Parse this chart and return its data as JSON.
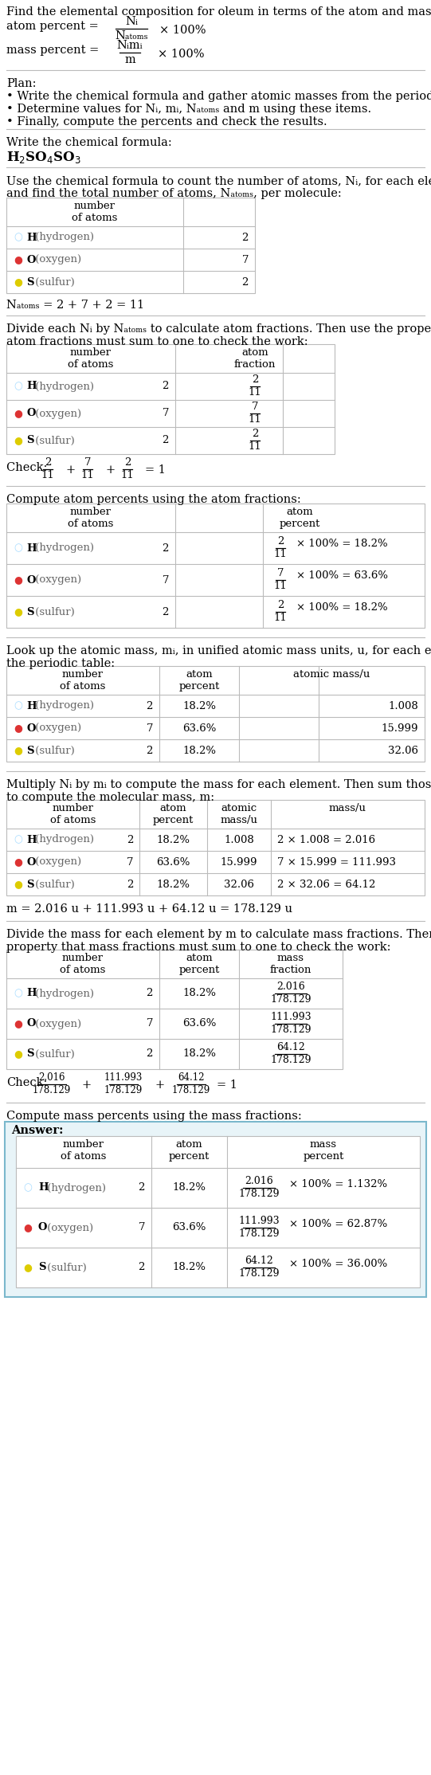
{
  "figsize": [
    5.41,
    22.28
  ],
  "dpi": 100,
  "bg_color": "#ffffff",
  "answer_bg": "#e8f4f8",
  "answer_border": "#7ab8cc",
  "table_border": "#bbbbbb",
  "text_color": "#000000",
  "gray_text": "#666666",
  "h_dot_color": "#aaddff",
  "o_dot_color": "#dd3333",
  "s_dot_color": "#ddcc00",
  "elements": [
    {
      "symbol": "○",
      "dot_color": "#aaddff",
      "letter": "H",
      "name": " (hydrogen)",
      "n": "2"
    },
    {
      "symbol": "●",
      "dot_color": "#dd3333",
      "letter": "O",
      "name": " (oxygen)",
      "n": "7"
    },
    {
      "symbol": "●",
      "dot_color": "#ddcc00",
      "letter": "S",
      "name": " (sulfur)",
      "n": "2"
    }
  ],
  "atom_percents": [
    "18.2%",
    "63.6%",
    "18.2%"
  ],
  "atomic_masses": [
    "1.008",
    "15.999",
    "32.06"
  ],
  "mass_calcs": [
    "2 × 1.008 = 2.016",
    "7 × 15.999 = 111.993",
    "2 × 32.06 = 64.12"
  ],
  "mass_fracs_num": [
    "2.016",
    "111.993",
    "64.12"
  ],
  "mass_fracs_den": "178.129",
  "mass_percents_result": [
    "1.132%",
    "62.87%",
    "36.00%"
  ]
}
